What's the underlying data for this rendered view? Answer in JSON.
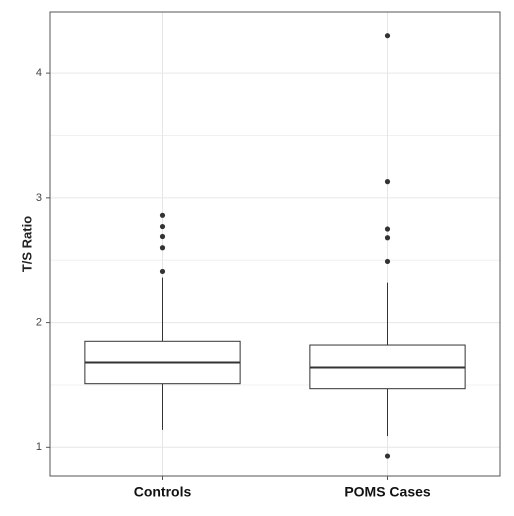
{
  "chart_data": {
    "type": "box",
    "y_label": "T/S Ratio",
    "categories": [
      "Controls",
      "POMS Cases"
    ],
    "boxes": [
      {
        "min": 1.14,
        "q1": 1.51,
        "median": 1.68,
        "q3": 1.85,
        "max": 2.36,
        "outliers": [
          2.41,
          2.6,
          2.69,
          2.77,
          2.86
        ]
      },
      {
        "min": 1.09,
        "q1": 1.47,
        "median": 1.64,
        "q3": 1.82,
        "max": 2.32,
        "outliers": [
          0.93,
          2.49,
          2.68,
          2.75,
          3.13,
          4.3
        ]
      }
    ],
    "ylim": [
      0.77,
      4.49
    ],
    "yticks": [
      1,
      2,
      3,
      4
    ],
    "minor_yticks": [
      1.5,
      2.5,
      3.5
    ],
    "grid": true,
    "color": "#333333"
  }
}
